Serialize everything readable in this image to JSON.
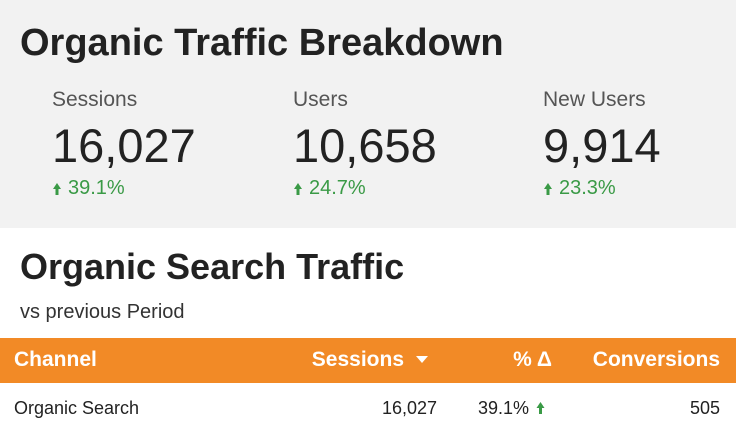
{
  "header": {
    "title": "Organic Traffic Breakdown"
  },
  "kpis": [
    {
      "label": "Sessions",
      "value": "16,027",
      "change": "39.1%"
    },
    {
      "label": "Users",
      "value": "10,658",
      "change": "24.7%"
    },
    {
      "label": "New Users",
      "value": "9,914",
      "change": "23.3%"
    }
  ],
  "table": {
    "title": "Organic Search Traffic",
    "subtitle": "vs previous Period",
    "columns": [
      "Channel",
      "Sessions",
      "% Δ",
      "Conversions"
    ],
    "rows": [
      [
        "Organic Search",
        "16,027",
        "39.1%",
        "505"
      ]
    ]
  }
}
